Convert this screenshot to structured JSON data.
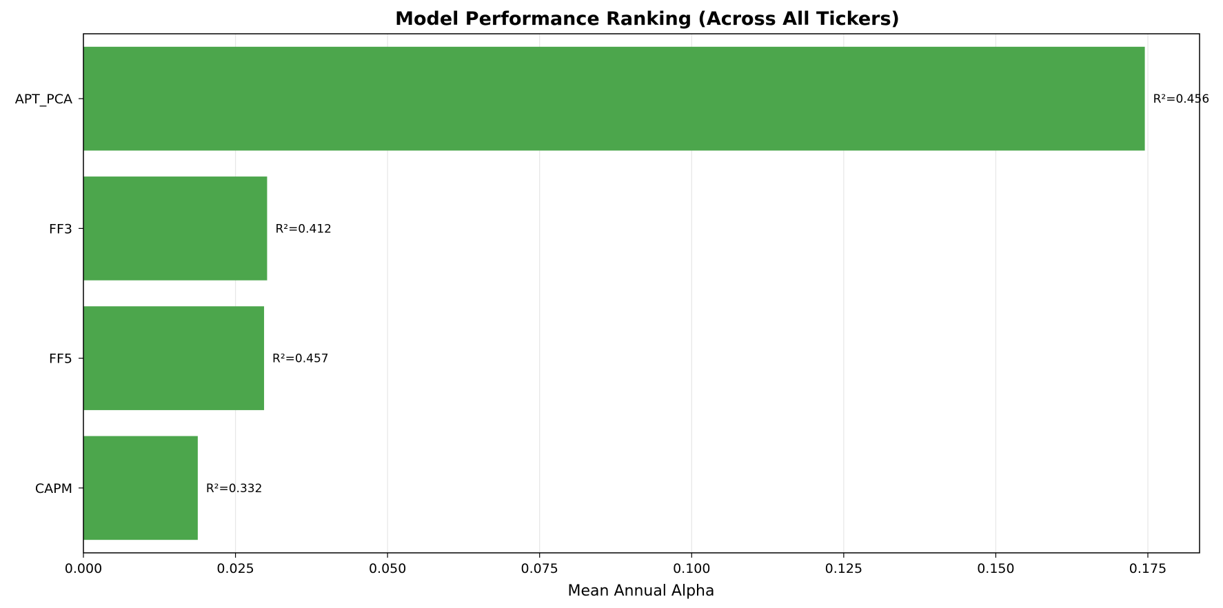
{
  "chart_data": {
    "type": "bar",
    "orientation": "horizontal",
    "title": "Model Performance Ranking (Across All Tickers)",
    "xlabel": "Mean Annual Alpha",
    "ylabel": "",
    "categories": [
      "APT_PCA",
      "FF3",
      "FF5",
      "CAPM"
    ],
    "values": [
      0.1745,
      0.0302,
      0.0297,
      0.0188
    ],
    "data_labels": [
      "R²=0.456",
      "R²=0.412",
      "R²=0.457",
      "R²=0.332"
    ],
    "xlim": [
      0,
      0.1835
    ],
    "xticks": [
      0,
      0.025,
      0.05,
      0.075,
      0.1,
      0.125,
      0.15,
      0.175
    ],
    "xtick_labels": [
      "0.000",
      "0.025",
      "0.050",
      "0.075",
      "0.100",
      "0.125",
      "0.150",
      "0.175"
    ],
    "bar_color": "#4ca64c",
    "grid": "x",
    "grid_color": "#e6e6e6"
  }
}
